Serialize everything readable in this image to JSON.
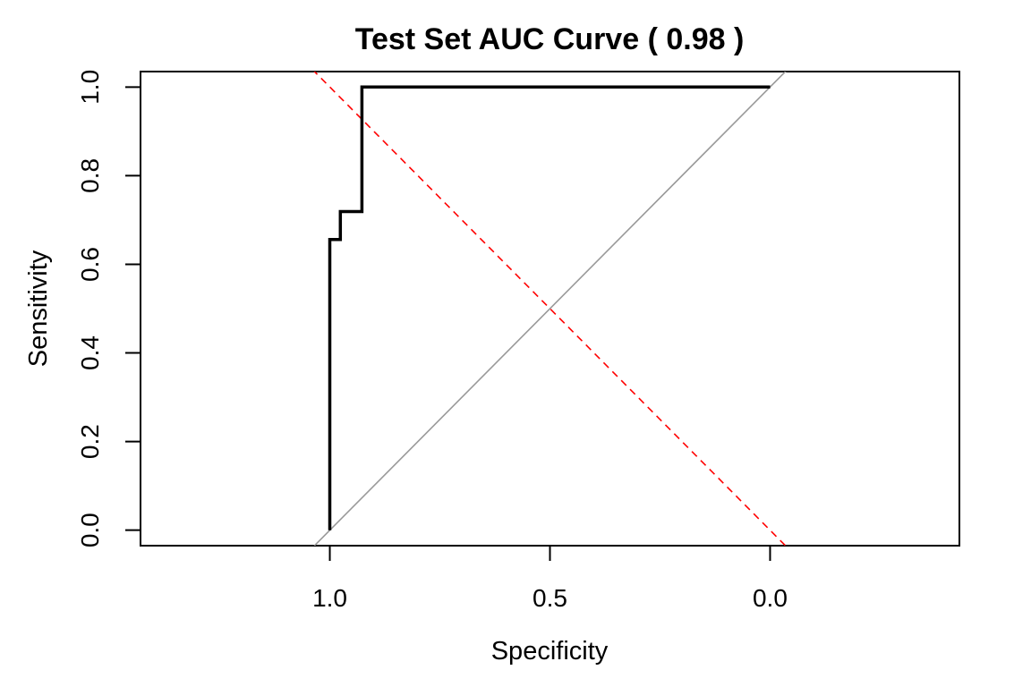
{
  "chart_data": {
    "type": "line",
    "title": "Test Set AUC Curve ( 0.98 )",
    "xlabel": "Specificity",
    "ylabel": "Sensitivity",
    "x_reversed": true,
    "xlim": [
      1.43,
      -0.43
    ],
    "ylim": [
      -0.035,
      1.035
    ],
    "x_ticks": [
      {
        "value": 1.0,
        "label": "1.0"
      },
      {
        "value": 0.5,
        "label": "0.5"
      },
      {
        "value": 0.0,
        "label": "0.0"
      }
    ],
    "y_ticks": [
      {
        "value": 0.0,
        "label": "0.0"
      },
      {
        "value": 0.2,
        "label": "0.2"
      },
      {
        "value": 0.4,
        "label": "0.4"
      },
      {
        "value": 0.6,
        "label": "0.6"
      },
      {
        "value": 0.8,
        "label": "0.8"
      },
      {
        "value": 1.0,
        "label": "1.0"
      }
    ],
    "grid": false,
    "legend": "none",
    "series": [
      {
        "role": "roc",
        "color": "#000000",
        "style": "solid",
        "points": [
          [
            1.0,
            0.0
          ],
          [
            1.0,
            0.656
          ],
          [
            0.976,
            0.656
          ],
          [
            0.976,
            0.719
          ],
          [
            0.927,
            0.719
          ],
          [
            0.927,
            1.0
          ],
          [
            0.0,
            1.0
          ]
        ]
      },
      {
        "role": "chance-diagonal",
        "color": "#999999",
        "style": "solid",
        "points": [
          [
            1.04,
            -0.04
          ],
          [
            -0.04,
            1.04
          ]
        ]
      },
      {
        "role": "threshold-diagonal",
        "color": "#ff0000",
        "style": "dashed",
        "points": [
          [
            1.04,
            1.04
          ],
          [
            -0.04,
            -0.04
          ]
        ]
      }
    ]
  }
}
